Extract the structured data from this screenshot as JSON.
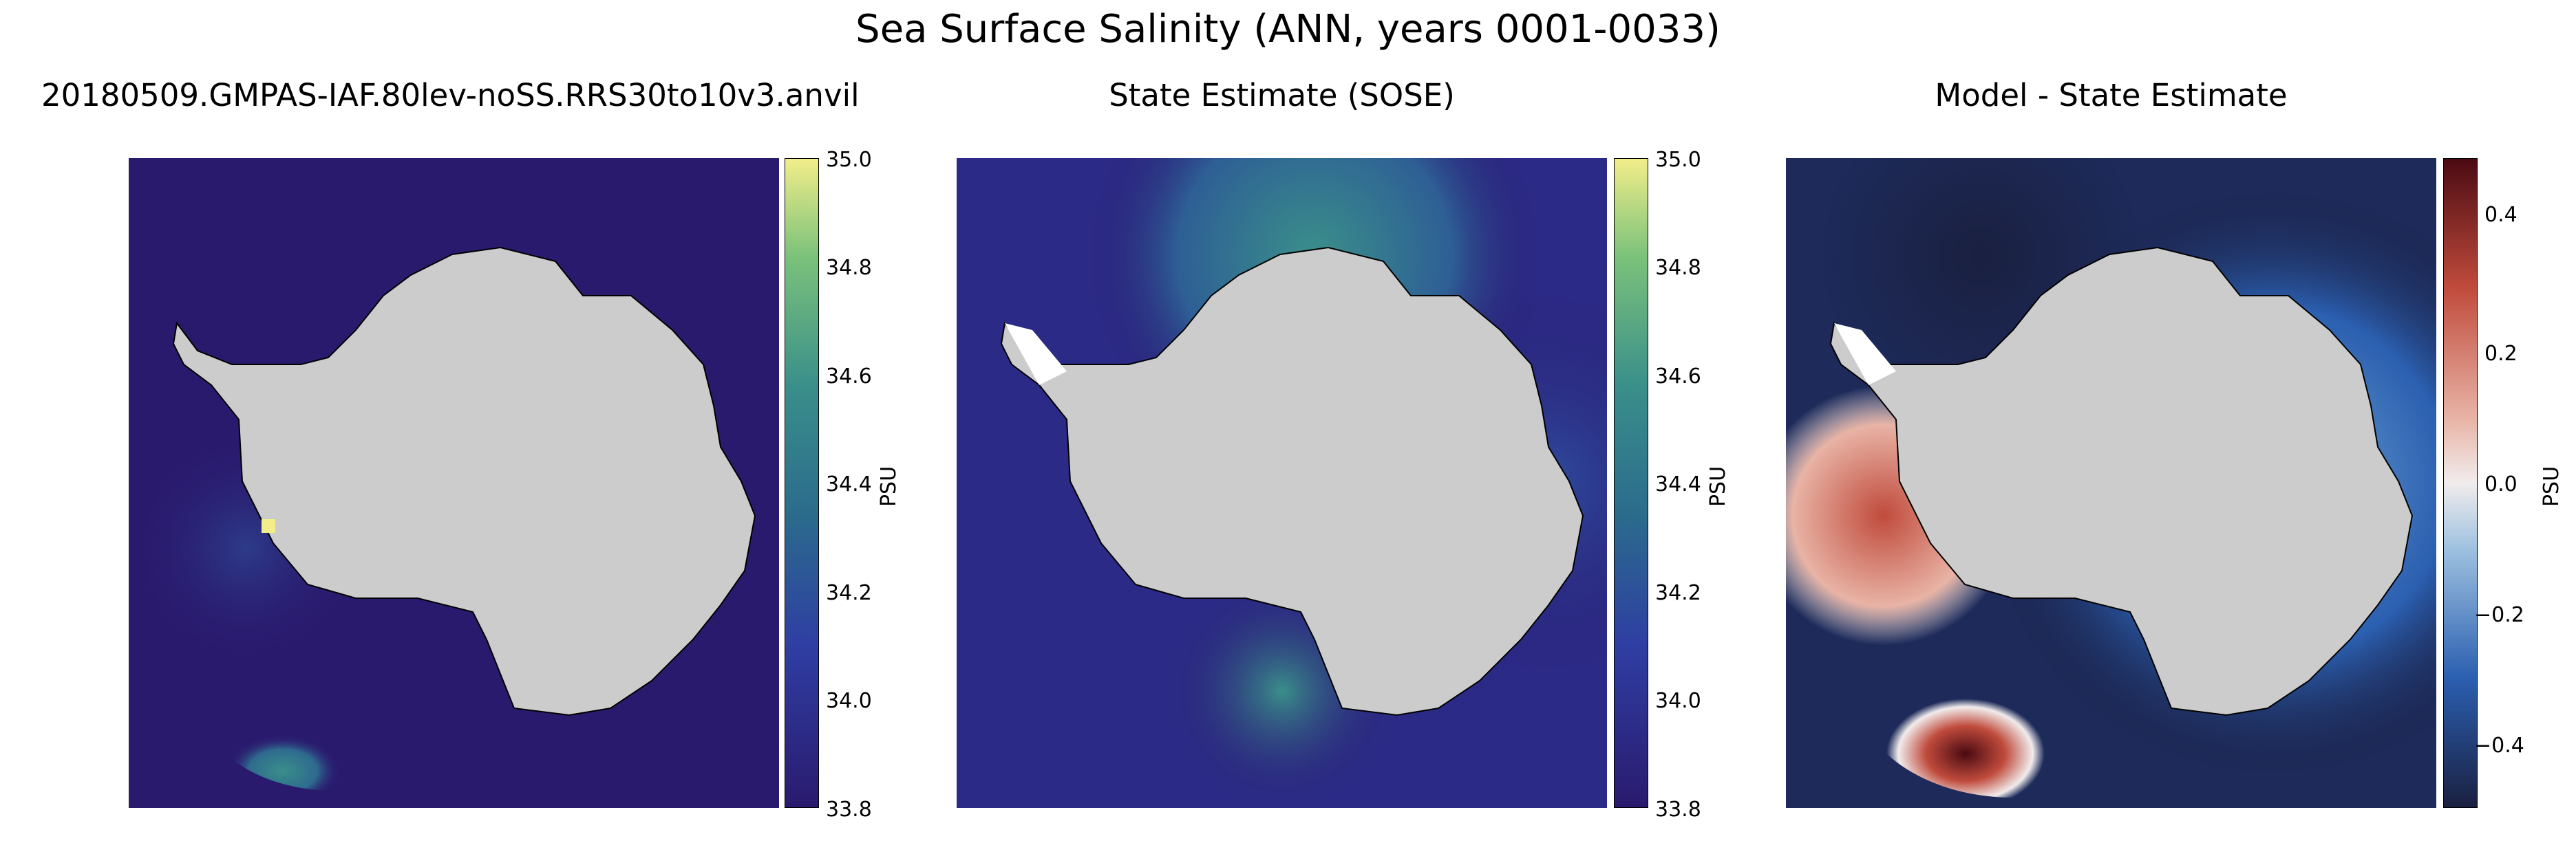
{
  "suptitle": "Sea Surface Salinity (ANN, years 0001-0033)",
  "panels": [
    {
      "title": "20180509.GMPAS-IAF.80lev-noSS.RRS30to10v3.anvil"
    },
    {
      "title": "State Estimate (SOSE)"
    },
    {
      "title": "Model - State Estimate"
    }
  ],
  "colorbars": [
    {
      "label": "PSU",
      "colormap": "haline",
      "vmin": 33.8,
      "vmax": 35.0,
      "ticks": [
        "35.0",
        "34.8",
        "34.6",
        "34.4",
        "34.2",
        "34.0",
        "33.8"
      ],
      "tick_values": [
        35.0,
        34.8,
        34.6,
        34.4,
        34.2,
        34.0,
        33.8
      ]
    },
    {
      "label": "PSU",
      "colormap": "haline",
      "vmin": 33.8,
      "vmax": 35.0,
      "ticks": [
        "35.0",
        "34.8",
        "34.6",
        "34.4",
        "34.2",
        "34.0",
        "33.8"
      ],
      "tick_values": [
        35.0,
        34.8,
        34.6,
        34.4,
        34.2,
        34.0,
        33.8
      ]
    },
    {
      "label": "PSU",
      "colormap": "balance",
      "vmin": -0.5,
      "vmax": 0.5,
      "ticks": [
        "0.4",
        "0.2",
        "0.0",
        "−0.2",
        "−0.4"
      ],
      "tick_values": [
        0.4,
        0.2,
        0.0,
        -0.2,
        -0.4
      ]
    }
  ],
  "colors": {
    "land": "#cccccc",
    "haline_low": "#2a1a6e",
    "haline_mid": "#3a8f8a",
    "haline_high": "#f3ee8a",
    "diff_low": "#1a2040",
    "diff_zero": "#f1ecec",
    "diff_high": "#4a0a12"
  },
  "chart_data": [
    {
      "type": "heatmap",
      "title": "20180509.GMPAS-IAF.80lev-noSS.RRS30to10v3.anvil",
      "colorbar_label": "PSU",
      "clim": [
        33.8,
        35.0
      ],
      "notes": "Southern Ocean polar stereographic map; mostly ~33.8-33.9 PSU with a patch near 34.3 in the Ross Sea"
    },
    {
      "type": "heatmap",
      "title": "State Estimate (SOSE)",
      "colorbar_label": "PSU",
      "clim": [
        33.8,
        35.0
      ],
      "notes": "Mostly ~33.9-34.0 PSU with higher (~34.3) band in the Weddell Sea / Atlantic sector"
    },
    {
      "type": "heatmap",
      "title": "Model - State Estimate",
      "colorbar_label": "PSU",
      "clim": [
        -0.5,
        0.5
      ],
      "notes": "Positive bias (~+0.5) in Ross Sea and Amundsen/Bellingshausen coast; negative (~-0.4) in open ocean"
    }
  ]
}
